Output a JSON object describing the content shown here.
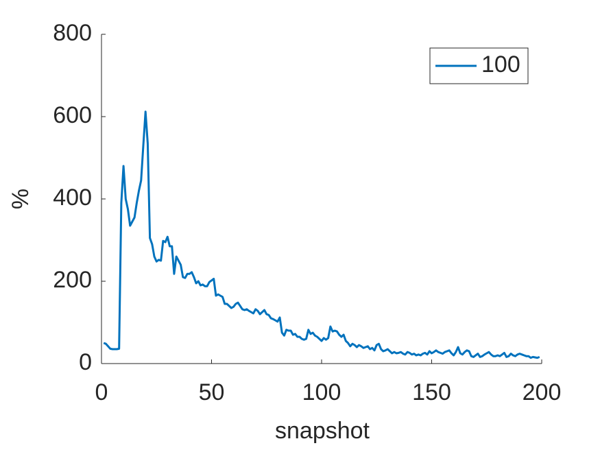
{
  "chart_data": {
    "type": "line",
    "xlabel": "snapshot",
    "ylabel": "%",
    "xlim": [
      0,
      200
    ],
    "xticks": [
      0,
      50,
      100,
      150,
      200
    ],
    "ylim": [
      0,
      800
    ],
    "yticks": [
      0,
      200,
      400,
      600,
      800
    ],
    "grid": false,
    "legend": "top-right",
    "x": [
      1,
      2,
      3,
      4,
      5,
      6,
      7,
      8,
      9,
      10,
      11,
      12,
      13,
      14,
      15,
      16,
      17,
      18,
      19,
      20,
      21,
      22,
      23,
      24,
      25,
      26,
      27,
      28,
      29,
      30,
      31,
      32,
      33,
      34,
      35,
      36,
      37,
      38,
      39,
      40,
      41,
      42,
      43,
      44,
      45,
      46,
      47,
      48,
      49,
      50,
      51,
      52,
      53,
      54,
      55,
      56,
      57,
      58,
      59,
      60,
      61,
      62,
      63,
      64,
      65,
      66,
      67,
      68,
      69,
      70,
      71,
      72,
      73,
      74,
      75,
      76,
      77,
      78,
      79,
      80,
      81,
      82,
      83,
      84,
      85,
      86,
      87,
      88,
      89,
      90,
      91,
      92,
      93,
      94,
      95,
      96,
      97,
      98,
      99,
      100,
      101,
      102,
      103,
      104,
      105,
      106,
      107,
      108,
      109,
      110,
      111,
      112,
      113,
      114,
      115,
      116,
      117,
      118,
      119,
      120,
      121,
      122,
      123,
      124,
      125,
      126,
      127,
      128,
      129,
      130,
      131,
      132,
      133,
      134,
      135,
      136,
      137,
      138,
      139,
      140,
      141,
      142,
      143,
      144,
      145,
      146,
      147,
      148,
      149,
      150,
      151,
      152,
      153,
      154,
      155,
      156,
      157,
      158,
      159,
      160,
      161,
      162,
      163,
      164,
      165,
      166,
      167,
      168,
      169,
      170,
      171,
      172,
      173,
      174,
      175,
      176,
      177,
      178,
      179,
      180,
      181,
      182,
      183,
      184,
      185,
      186,
      187,
      188,
      189,
      190,
      191,
      192,
      193,
      194,
      195,
      196,
      197,
      198,
      199
    ],
    "series": [
      {
        "name": "100",
        "color": "#0072bd",
        "values": [
          50,
          48,
          42,
          36,
          35,
          35,
          35,
          36,
          390,
          480,
          400,
          375,
          335,
          345,
          355,
          390,
          420,
          445,
          530,
          612,
          535,
          305,
          290,
          260,
          248,
          252,
          250,
          298,
          295,
          308,
          285,
          285,
          218,
          260,
          250,
          240,
          210,
          208,
          218,
          218,
          222,
          210,
          195,
          200,
          190,
          192,
          188,
          188,
          198,
          202,
          206,
          165,
          168,
          165,
          162,
          145,
          145,
          140,
          135,
          138,
          145,
          148,
          140,
          132,
          130,
          132,
          128,
          125,
          122,
          132,
          128,
          120,
          125,
          130,
          120,
          118,
          110,
          108,
          105,
          102,
          112,
          75,
          68,
          82,
          80,
          80,
          70,
          72,
          65,
          65,
          60,
          58,
          60,
          82,
          72,
          75,
          68,
          65,
          60,
          55,
          62,
          58,
          62,
          90,
          78,
          80,
          78,
          70,
          65,
          70,
          55,
          50,
          42,
          48,
          45,
          40,
          45,
          42,
          38,
          40,
          42,
          35,
          38,
          32,
          45,
          48,
          35,
          30,
          32,
          35,
          30,
          25,
          28,
          25,
          26,
          28,
          24,
          22,
          28,
          26,
          22,
          24,
          20,
          22,
          20,
          24,
          26,
          22,
          30,
          25,
          28,
          32,
          28,
          26,
          24,
          28,
          30,
          32,
          25,
          20,
          28,
          40,
          25,
          22,
          28,
          32,
          30,
          18,
          16,
          20,
          24,
          16,
          18,
          22,
          25,
          28,
          22,
          18,
          18,
          20,
          18,
          22,
          26,
          16,
          18,
          24,
          20,
          18,
          22,
          24,
          22,
          20,
          18,
          18,
          14,
          16,
          15,
          14,
          16
        ]
      }
    ]
  }
}
